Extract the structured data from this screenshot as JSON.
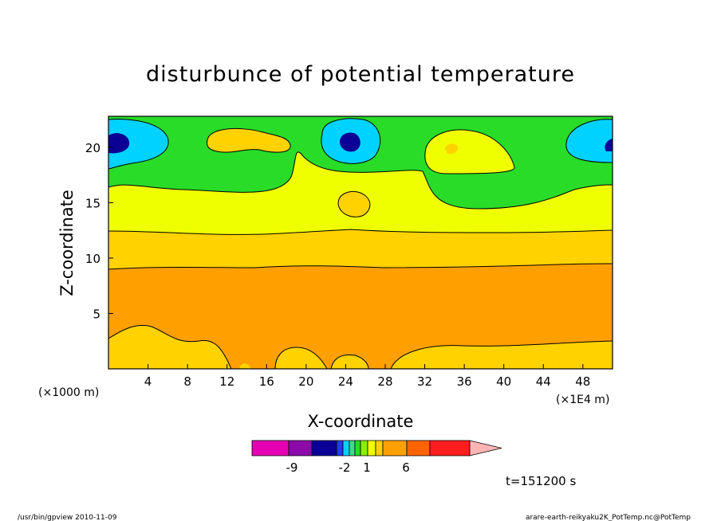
{
  "chart_data": {
    "type": "contour",
    "title": "disturbunce of potential temperature",
    "xlabel": "X-coordinate",
    "ylabel": "Z-coordinate",
    "x_unit_left": "(×1000 m)",
    "x_unit_right": "(×1E4 m)",
    "xlim": [
      0,
      51
    ],
    "ylim": [
      0,
      22.8
    ],
    "xticks": [
      4,
      8,
      12,
      16,
      20,
      24,
      28,
      32,
      36,
      40,
      44,
      48
    ],
    "yticks": [
      5,
      10,
      15,
      20
    ],
    "time_label": "t=151200 s",
    "colorbar": {
      "levels": [
        {
          "color": "#e600b4"
        },
        {
          "color": "#8c0aaa"
        },
        {
          "color": "#0a0096"
        },
        {
          "color": "#1e3cff"
        },
        {
          "color": "#00d2ff"
        },
        {
          "color": "#3cdc8c"
        },
        {
          "color": "#28dc28"
        },
        {
          "color": "#8cf000"
        },
        {
          "color": "#f0ff00"
        },
        {
          "color": "#ffd200"
        },
        {
          "color": "#ffa000"
        },
        {
          "color": "#ff6400"
        },
        {
          "color": "#ff1e1e"
        },
        {
          "color": "#ff7878"
        },
        {
          "color": "#ffb4b4"
        }
      ],
      "tick_labels": [
        "-9",
        "-2",
        "1",
        "6"
      ]
    },
    "regions_note": "orange near surface, yellow-orange 9-12, yellow 12-16, green above with blue/cyan cells near z=20 at x≈0, 24, 51"
  },
  "footer": {
    "left": "/usr/bin/gpview   2010-11-09",
    "right": "arare-earth-reikyaku2K_PotTemp.nc@PotTemp"
  }
}
